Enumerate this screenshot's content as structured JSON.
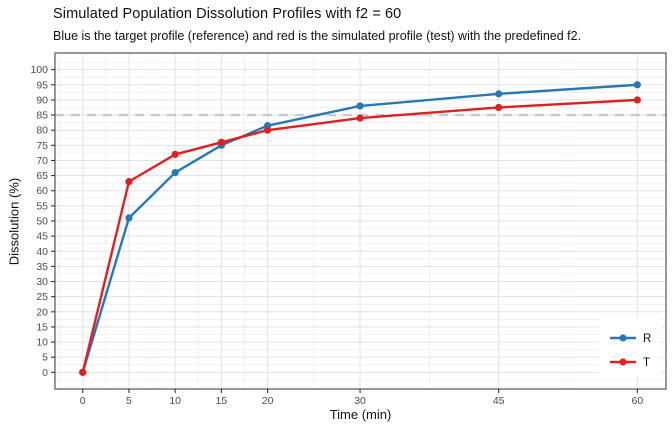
{
  "chart_data": {
    "type": "line",
    "title": "Simulated Population Dissolution Profiles with f2 = 60",
    "subtitle": "Blue is the target profile (reference) and red is the simulated profile (test) with the predefined f2.",
    "xlabel": "Time (min)",
    "ylabel": "Dissolution (%)",
    "x": [
      0,
      5,
      10,
      15,
      20,
      30,
      45,
      60
    ],
    "series": [
      {
        "name": "R",
        "color": "#2878b8",
        "values": [
          0,
          51,
          66,
          75,
          81.5,
          88,
          92,
          95
        ]
      },
      {
        "name": "T",
        "color": "#e12120",
        "values": [
          0,
          63,
          72,
          76,
          80,
          84,
          87.5,
          90
        ]
      }
    ],
    "reference_line": {
      "y": 85,
      "style": "dashed",
      "color": "#c9c9c9"
    },
    "x_ticks": [
      0,
      5,
      10,
      15,
      20,
      30,
      45,
      60
    ],
    "x_tick_labels": [
      "0",
      "5",
      "10",
      "15",
      "20",
      "30",
      "45",
      "60"
    ],
    "y_ticks": [
      0,
      5,
      10,
      15,
      20,
      25,
      30,
      35,
      40,
      45,
      50,
      55,
      60,
      65,
      70,
      75,
      80,
      85,
      90,
      95,
      100
    ],
    "y_tick_labels": [
      "0",
      "5",
      "10",
      "15",
      "20",
      "25",
      "30",
      "35",
      "40",
      "45",
      "50",
      "55",
      "60",
      "65",
      "70",
      "75",
      "80",
      "85",
      "90",
      "95",
      "100"
    ],
    "xlim": [
      -3,
      63.1
    ],
    "ylim": [
      -5.5,
      105.5
    ],
    "grid": true,
    "legend": {
      "position": "inside-bottom-right",
      "entries": [
        {
          "label": "R",
          "color": "#2878b8"
        },
        {
          "label": "T",
          "color": "#e12120"
        }
      ]
    },
    "style_colors": {
      "panel_border": "#555555",
      "grid_major": "#e3e3e3",
      "grid_minor": "#f0f0f0",
      "tick": "#333333",
      "tick_label": "#4d4d4d",
      "legend_background": "#ffffff"
    }
  }
}
